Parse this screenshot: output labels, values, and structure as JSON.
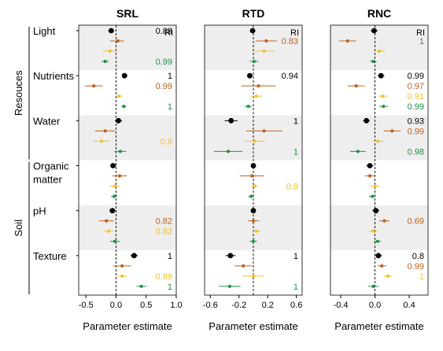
{
  "chart_data": {
    "type": "scatter",
    "layout": "forest-plot, three facets, point estimates with confidence intervals",
    "group_labels": [
      "Resouces",
      "Soil"
    ],
    "predictors": [
      "Light",
      "Nutrients",
      "Water",
      "Organic\nmatter",
      "pH",
      "Texture"
    ],
    "predictor_groups": {
      "Resouces": [
        "Light",
        "Nutrients",
        "Water"
      ],
      "Soil": [
        "Organic\nmatter",
        "pH",
        "Texture"
      ]
    },
    "series_colors": [
      "#000000",
      "#c0601c",
      "#f2c02a",
      "#1f9148"
    ],
    "xlabel": "Parameter estimate",
    "ri_label": "RI",
    "panels": [
      {
        "title": "SRL",
        "xlim": [
          -0.62,
          1.0
        ],
        "xticks": [
          -0.5,
          0.0,
          0.5,
          1.0
        ],
        "xtick_labels": [
          "-0.5",
          "0.0",
          "0.5",
          "1.0"
        ],
        "groups": [
          [
            {
              "est": -0.08,
              "lo": -0.13,
              "hi": -0.03,
              "ri": "0.88"
            },
            {
              "est": 0.03,
              "lo": -0.1,
              "hi": 0.13,
              "ri": ""
            },
            {
              "est": -0.1,
              "lo": -0.22,
              "hi": 0.02,
              "ri": ""
            },
            {
              "est": -0.18,
              "lo": -0.24,
              "hi": -0.12,
              "ri": "0.99"
            }
          ],
          [
            {
              "est": 0.14,
              "lo": 0.1,
              "hi": 0.19,
              "ri": "1"
            },
            {
              "est": -0.37,
              "lo": -0.52,
              "hi": -0.22,
              "ri": "0.99"
            },
            {
              "est": 0.05,
              "lo": 0.0,
              "hi": 0.1,
              "ri": ""
            },
            {
              "est": 0.13,
              "lo": 0.09,
              "hi": 0.17,
              "ri": "1"
            }
          ],
          [
            {
              "est": 0.04,
              "lo": -0.02,
              "hi": 0.1,
              "ri": ""
            },
            {
              "est": -0.18,
              "lo": -0.35,
              "hi": -0.01,
              "ri": ""
            },
            {
              "est": -0.24,
              "lo": -0.38,
              "hi": -0.1,
              "ri": "0.9"
            },
            {
              "est": 0.07,
              "lo": -0.03,
              "hi": 0.17,
              "ri": ""
            }
          ],
          [
            {
              "est": -0.05,
              "lo": -0.1,
              "hi": 0.0,
              "ri": ""
            },
            {
              "est": 0.06,
              "lo": -0.06,
              "hi": 0.18,
              "ri": ""
            },
            {
              "est": -0.02,
              "lo": -0.1,
              "hi": 0.06,
              "ri": ""
            },
            {
              "est": -0.03,
              "lo": -0.08,
              "hi": 0.02,
              "ri": ""
            }
          ],
          [
            {
              "est": -0.06,
              "lo": -0.11,
              "hi": -0.01,
              "ri": ""
            },
            {
              "est": -0.16,
              "lo": -0.28,
              "hi": -0.04,
              "ri": "0.82"
            },
            {
              "est": -0.12,
              "lo": -0.2,
              "hi": -0.04,
              "ri": "0.82"
            },
            {
              "est": -0.02,
              "lo": -0.1,
              "hi": 0.06,
              "ri": ""
            }
          ],
          [
            {
              "est": 0.3,
              "lo": 0.24,
              "hi": 0.36,
              "ri": "1"
            },
            {
              "est": 0.1,
              "lo": -0.05,
              "hi": 0.25,
              "ri": ""
            },
            {
              "est": 0.1,
              "lo": 0.02,
              "hi": 0.18,
              "ri": "0.89"
            },
            {
              "est": 0.42,
              "lo": 0.34,
              "hi": 0.5,
              "ri": "1"
            }
          ]
        ]
      },
      {
        "title": "RTD",
        "xlim": [
          -0.68,
          0.68
        ],
        "xticks": [
          -0.6,
          -0.2,
          0.2,
          0.6
        ],
        "xtick_labels": [
          "-0.6",
          "-0.2",
          "0.2",
          "0.6"
        ],
        "groups": [
          [
            {
              "est": -0.01,
              "lo": -0.05,
              "hi": 0.03,
              "ri": ""
            },
            {
              "est": 0.18,
              "lo": 0.03,
              "hi": 0.33,
              "ri": "0.83"
            },
            {
              "est": 0.15,
              "lo": 0.0,
              "hi": 0.3,
              "ri": ""
            },
            {
              "est": 0.01,
              "lo": -0.05,
              "hi": 0.07,
              "ri": ""
            }
          ],
          [
            {
              "est": -0.05,
              "lo": -0.09,
              "hi": -0.01,
              "ri": "0.94"
            },
            {
              "est": 0.07,
              "lo": -0.17,
              "hi": 0.31,
              "ri": ""
            },
            {
              "est": 0.04,
              "lo": -0.04,
              "hi": 0.12,
              "ri": ""
            },
            {
              "est": -0.07,
              "lo": -0.12,
              "hi": -0.02,
              "ri": ""
            }
          ],
          [
            {
              "est": -0.31,
              "lo": -0.4,
              "hi": -0.22,
              "ri": "1"
            },
            {
              "est": 0.15,
              "lo": -0.1,
              "hi": 0.4,
              "ri": ""
            },
            {
              "est": 0.02,
              "lo": -0.12,
              "hi": 0.16,
              "ri": ""
            },
            {
              "est": -0.35,
              "lo": -0.55,
              "hi": -0.15,
              "ri": "1"
            }
          ],
          [
            {
              "est": 0.0,
              "lo": -0.03,
              "hi": 0.03,
              "ri": ""
            },
            {
              "est": -0.02,
              "lo": -0.19,
              "hi": 0.15,
              "ri": ""
            },
            {
              "est": 0.02,
              "lo": -0.02,
              "hi": 0.06,
              "ri": "0.9"
            },
            {
              "est": -0.03,
              "lo": -0.07,
              "hi": 0.01,
              "ri": ""
            }
          ],
          [
            {
              "est": 0.0,
              "lo": -0.03,
              "hi": 0.03,
              "ri": ""
            },
            {
              "est": 0.0,
              "lo": -0.08,
              "hi": 0.08,
              "ri": ""
            },
            {
              "est": 0.04,
              "lo": -0.01,
              "hi": 0.09,
              "ri": ""
            },
            {
              "est": 0.0,
              "lo": -0.05,
              "hi": 0.05,
              "ri": ""
            }
          ],
          [
            {
              "est": -0.32,
              "lo": -0.39,
              "hi": -0.25,
              "ri": "1"
            },
            {
              "est": -0.14,
              "lo": -0.26,
              "hi": -0.02,
              "ri": ""
            },
            {
              "est": 0.0,
              "lo": -0.15,
              "hi": 0.15,
              "ri": ""
            },
            {
              "est": -0.33,
              "lo": -0.48,
              "hi": -0.18,
              "ri": "1"
            }
          ]
        ]
      },
      {
        "title": "RNC",
        "xlim": [
          -0.52,
          0.62
        ],
        "xticks": [
          -0.4,
          0.0,
          0.4
        ],
        "xtick_labels": [
          "-0.4",
          "0.0",
          "0.4"
        ],
        "groups": [
          [
            {
              "est": -0.01,
              "lo": -0.05,
              "hi": 0.03,
              "ri": ""
            },
            {
              "est": -0.32,
              "lo": -0.42,
              "hi": -0.22,
              "ri": "1"
            },
            {
              "est": 0.05,
              "lo": -0.02,
              "hi": 0.12,
              "ri": ""
            },
            {
              "est": -0.02,
              "lo": -0.06,
              "hi": 0.02,
              "ri": ""
            }
          ],
          [
            {
              "est": 0.07,
              "lo": 0.03,
              "hi": 0.11,
              "ri": "0.99"
            },
            {
              "est": -0.22,
              "lo": -0.32,
              "hi": -0.12,
              "ri": "0.97"
            },
            {
              "est": 0.09,
              "lo": 0.04,
              "hi": 0.14,
              "ri": "0.91"
            },
            {
              "est": 0.1,
              "lo": 0.05,
              "hi": 0.15,
              "ri": "0.99"
            }
          ],
          [
            {
              "est": -0.1,
              "lo": -0.14,
              "hi": -0.06,
              "ri": "0.93"
            },
            {
              "est": 0.2,
              "lo": 0.1,
              "hi": 0.3,
              "ri": "0.99"
            },
            {
              "est": 0.03,
              "lo": -0.04,
              "hi": 0.1,
              "ri": ""
            },
            {
              "est": -0.2,
              "lo": -0.29,
              "hi": -0.11,
              "ri": "0.98"
            }
          ],
          [
            {
              "est": -0.06,
              "lo": -0.1,
              "hi": -0.02,
              "ri": ""
            },
            {
              "est": -0.06,
              "lo": -0.12,
              "hi": 0.0,
              "ri": ""
            },
            {
              "est": 0.0,
              "lo": -0.05,
              "hi": 0.05,
              "ri": ""
            },
            {
              "est": -0.03,
              "lo": -0.07,
              "hi": 0.01,
              "ri": ""
            }
          ],
          [
            {
              "est": 0.01,
              "lo": -0.03,
              "hi": 0.05,
              "ri": ""
            },
            {
              "est": 0.11,
              "lo": 0.05,
              "hi": 0.17,
              "ri": "0.69"
            },
            {
              "est": -0.02,
              "lo": -0.07,
              "hi": 0.03,
              "ri": ""
            },
            {
              "est": 0.03,
              "lo": -0.01,
              "hi": 0.07,
              "ri": ""
            }
          ],
          [
            {
              "est": 0.04,
              "lo": 0.0,
              "hi": 0.08,
              "ri": "0.8"
            },
            {
              "est": 0.08,
              "lo": 0.03,
              "hi": 0.13,
              "ri": "0.99"
            },
            {
              "est": 0.15,
              "lo": 0.1,
              "hi": 0.2,
              "ri": "1"
            },
            {
              "est": -0.02,
              "lo": -0.08,
              "hi": 0.04,
              "ri": ""
            }
          ]
        ]
      }
    ]
  }
}
